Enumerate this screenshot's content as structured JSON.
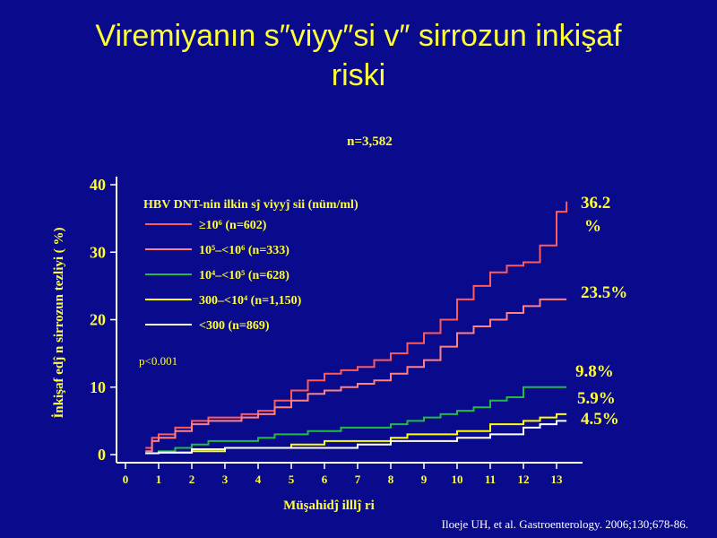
{
  "slide": {
    "title_line1": "Viremiyanın s″viyy″si v″  sirrozun inkişaf",
    "title_line2": "riski",
    "subtitle": "n=3,582",
    "citation": "Iloeje UH, et al. Gastroenterology. 2006;130;678-86."
  },
  "colors": {
    "background": "#0a0a8c",
    "text": "#ffff33",
    "axis": "#ffffff",
    "series": [
      "#ff5a5a",
      "#ff8080",
      "#22bb44",
      "#ffff00",
      "#ffffff"
    ]
  },
  "chart_data": {
    "type": "line",
    "title": "",
    "xlabel": "Müşahidĵ  illlĵ ri",
    "ylabel": "İnkişaf edĵ n sirrozun tezliyi ( %)",
    "xlim": [
      0,
      13.5
    ],
    "ylim": [
      -1,
      41
    ],
    "x_ticks": [
      0,
      1,
      2,
      3,
      4,
      5,
      6,
      7,
      8,
      9,
      10,
      11,
      12,
      13
    ],
    "y_ticks": [
      0,
      10,
      20,
      30,
      40
    ],
    "legend_title": "HBV DNT-nin ilkin sĵ viyyĵ sii  (nüm/ml)",
    "legend_position": "top-left",
    "p_value": "p<0.001",
    "series": [
      {
        "name": "≥10⁶ (n=602)",
        "end_label": "36.2 %",
        "points": [
          [
            0.6,
            1
          ],
          [
            0.8,
            2.5
          ],
          [
            1,
            3
          ],
          [
            1.5,
            4
          ],
          [
            2,
            5
          ],
          [
            2.5,
            5.5
          ],
          [
            3,
            5.5
          ],
          [
            3.5,
            6
          ],
          [
            4,
            6.5
          ],
          [
            4.5,
            8
          ],
          [
            5,
            9.5
          ],
          [
            5.5,
            11
          ],
          [
            6,
            12
          ],
          [
            6.5,
            12.5
          ],
          [
            7,
            13
          ],
          [
            7.5,
            14
          ],
          [
            8,
            15
          ],
          [
            8.5,
            16.5
          ],
          [
            9,
            18
          ],
          [
            9.5,
            20
          ],
          [
            10,
            23
          ],
          [
            10.5,
            25
          ],
          [
            11,
            27
          ],
          [
            11.5,
            28
          ],
          [
            12,
            28.5
          ],
          [
            12.5,
            31
          ],
          [
            13,
            36
          ],
          [
            13.3,
            37.5
          ]
        ]
      },
      {
        "name": "10⁵–<10⁶ (n=333)",
        "end_label": "23.5%",
        "points": [
          [
            0.6,
            0.5
          ],
          [
            0.8,
            2
          ],
          [
            1,
            2.5
          ],
          [
            1.5,
            3.5
          ],
          [
            2,
            4.5
          ],
          [
            2.5,
            5
          ],
          [
            3,
            5
          ],
          [
            3.5,
            5.5
          ],
          [
            4,
            6
          ],
          [
            4.5,
            7
          ],
          [
            5,
            8
          ],
          [
            5.5,
            9
          ],
          [
            6,
            9.5
          ],
          [
            6.5,
            10
          ],
          [
            7,
            10.5
          ],
          [
            7.5,
            11
          ],
          [
            8,
            12
          ],
          [
            8.5,
            13
          ],
          [
            9,
            14
          ],
          [
            9.5,
            16
          ],
          [
            10,
            18
          ],
          [
            10.5,
            19
          ],
          [
            11,
            20
          ],
          [
            11.5,
            21
          ],
          [
            12,
            22
          ],
          [
            12.5,
            23
          ],
          [
            13.3,
            23
          ]
        ]
      },
      {
        "name": "10⁴–<10⁵ (n=628)",
        "end_label": "9.8%",
        "points": [
          [
            0.6,
            0.2
          ],
          [
            1,
            0.5
          ],
          [
            1.5,
            1
          ],
          [
            2,
            1.5
          ],
          [
            2.5,
            2
          ],
          [
            3,
            2
          ],
          [
            4,
            2.5
          ],
          [
            4.5,
            3
          ],
          [
            5,
            3
          ],
          [
            5.5,
            3.5
          ],
          [
            6,
            3.5
          ],
          [
            6.5,
            4
          ],
          [
            7,
            4
          ],
          [
            8,
            4.5
          ],
          [
            8.5,
            5
          ],
          [
            9,
            5.5
          ],
          [
            9.5,
            6
          ],
          [
            10,
            6.5
          ],
          [
            10.5,
            7
          ],
          [
            11,
            8
          ],
          [
            11.5,
            8.5
          ],
          [
            12,
            10
          ],
          [
            12.5,
            10
          ],
          [
            13.3,
            10
          ]
        ]
      },
      {
        "name": "300–<10⁴ (n=1,150)",
        "end_label": "5.9%",
        "points": [
          [
            0.6,
            0.2
          ],
          [
            1,
            0.3
          ],
          [
            2,
            0.5
          ],
          [
            3,
            1
          ],
          [
            4,
            1
          ],
          [
            5,
            1.5
          ],
          [
            6,
            2
          ],
          [
            7,
            2
          ],
          [
            8,
            2.5
          ],
          [
            8.5,
            3
          ],
          [
            9,
            3
          ],
          [
            10,
            3.5
          ],
          [
            11,
            4.5
          ],
          [
            12,
            5
          ],
          [
            12.5,
            5.5
          ],
          [
            13,
            6
          ],
          [
            13.3,
            6
          ]
        ]
      },
      {
        "name": "<300 (n=869)",
        "end_label": "4.5%",
        "points": [
          [
            0.6,
            0.2
          ],
          [
            1,
            0.3
          ],
          [
            2,
            0.8
          ],
          [
            3,
            1
          ],
          [
            4,
            1
          ],
          [
            5,
            1
          ],
          [
            6,
            1
          ],
          [
            7,
            1.5
          ],
          [
            8,
            2
          ],
          [
            9,
            2
          ],
          [
            10,
            2.5
          ],
          [
            11,
            3
          ],
          [
            12,
            4
          ],
          [
            12.5,
            4.5
          ],
          [
            13,
            5
          ],
          [
            13.3,
            5
          ]
        ]
      }
    ]
  }
}
